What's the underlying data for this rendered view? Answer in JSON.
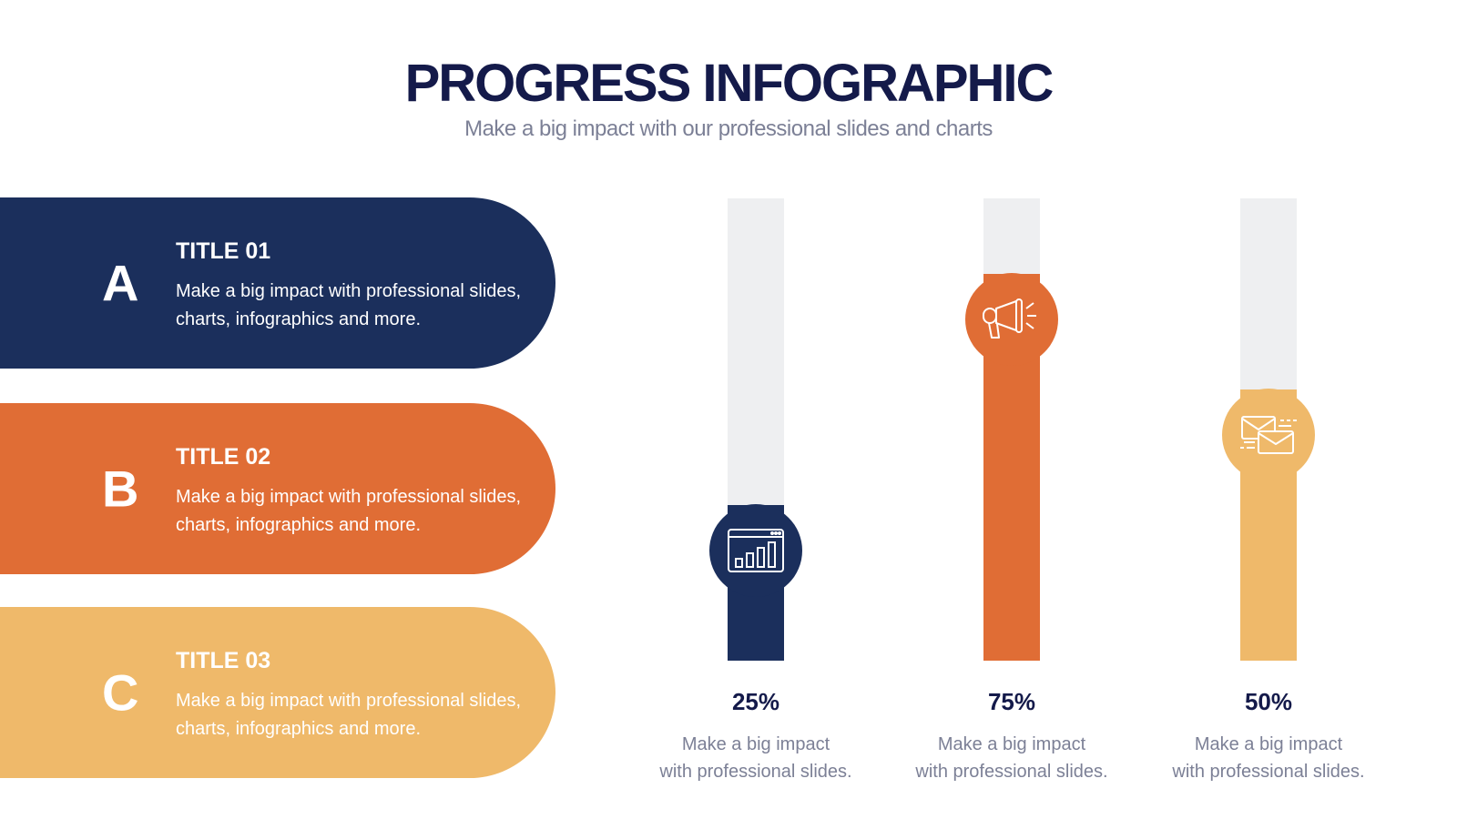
{
  "header": {
    "title": "PROGRESS INFOGRAPHIC",
    "subtitle": "Make a big impact with our professional slides and charts"
  },
  "colors": {
    "navy": "#1b2f5c",
    "orange": "#e06d35",
    "yellow": "#efb96a",
    "track": "#eeeff1",
    "heading": "#141a4a",
    "muted": "#7c8096"
  },
  "items": [
    {
      "letter": "A",
      "title": "TITLE 01",
      "desc": "Make a big impact with professional slides, charts, infographics and more.",
      "color": "#1b2f5c"
    },
    {
      "letter": "B",
      "title": "TITLE 02",
      "desc": "Make a big impact with professional slides, charts, infographics and more.",
      "color": "#e06d35"
    },
    {
      "letter": "C",
      "title": "TITLE 03",
      "desc": "Make a big impact with professional slides, charts, infographics and more.",
      "color": "#efb96a"
    }
  ],
  "chart_data": {
    "type": "bar",
    "categories": [
      "25%",
      "75%",
      "50%"
    ],
    "values": [
      25,
      75,
      50
    ],
    "ylim": [
      0,
      100
    ],
    "series": [
      {
        "values": [
          25,
          75,
          50
        ]
      }
    ],
    "bars": [
      {
        "value": 25,
        "label": "25%",
        "desc_line1": "Make a big impact",
        "desc_line2": "with professional slides.",
        "color": "#1b2f5c",
        "icon": "bar-chart-icon"
      },
      {
        "value": 75,
        "label": "75%",
        "desc_line1": "Make a big impact",
        "desc_line2": "with professional slides.",
        "color": "#e06d35",
        "icon": "megaphone-icon"
      },
      {
        "value": 50,
        "label": "50%",
        "desc_line1": "Make a big impact",
        "desc_line2": "with professional slides.",
        "color": "#efb96a",
        "icon": "envelope-icon"
      }
    ]
  }
}
